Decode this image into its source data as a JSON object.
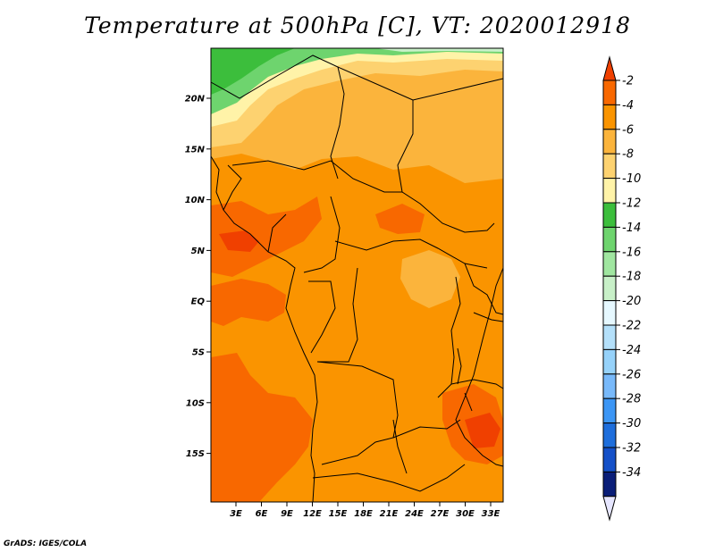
{
  "title": "Temperature at 500hPa [C], VT: 2020012918",
  "credit": "GrADS: IGES/COLA",
  "lat_labels": [
    "20N",
    "15N",
    "10N",
    "5N",
    "EQ",
    "5S",
    "10S",
    "15S"
  ],
  "lon_labels": [
    "3E",
    "6E",
    "9E",
    "12E",
    "15E",
    "18E",
    "21E",
    "24E",
    "27E",
    "30E",
    "33E"
  ],
  "colorbar": {
    "levels": [
      "-2",
      "-4",
      "-6",
      "-8",
      "-10",
      "-12",
      "-14",
      "-16",
      "-18",
      "-20",
      "-22",
      "-24",
      "-26",
      "-28",
      "-30",
      "-32",
      "-34"
    ],
    "colors": [
      "#f04000",
      "#f86800",
      "#fa9400",
      "#fbb43c",
      "#fdd270",
      "#fff3a8",
      "#3cbe3c",
      "#6ed46e",
      "#a0e6a0",
      "#c8f0c8",
      "#e6f8ff",
      "#b4e0fa",
      "#96d2fa",
      "#78b9fa",
      "#3c96f5",
      "#1e6edc",
      "#1450c8",
      "#0a1e78",
      "#e6e6ff"
    ]
  },
  "colors": {
    "field_base": "#fa9400",
    "field_warm": "#f86800",
    "field_hot": "#f04000",
    "field_cool": "#fbb43c",
    "field_mild": "#fdd270",
    "field_pale": "#fff3a8",
    "field_green": "#6ed46e",
    "field_green_dark": "#3cbe3c"
  }
}
